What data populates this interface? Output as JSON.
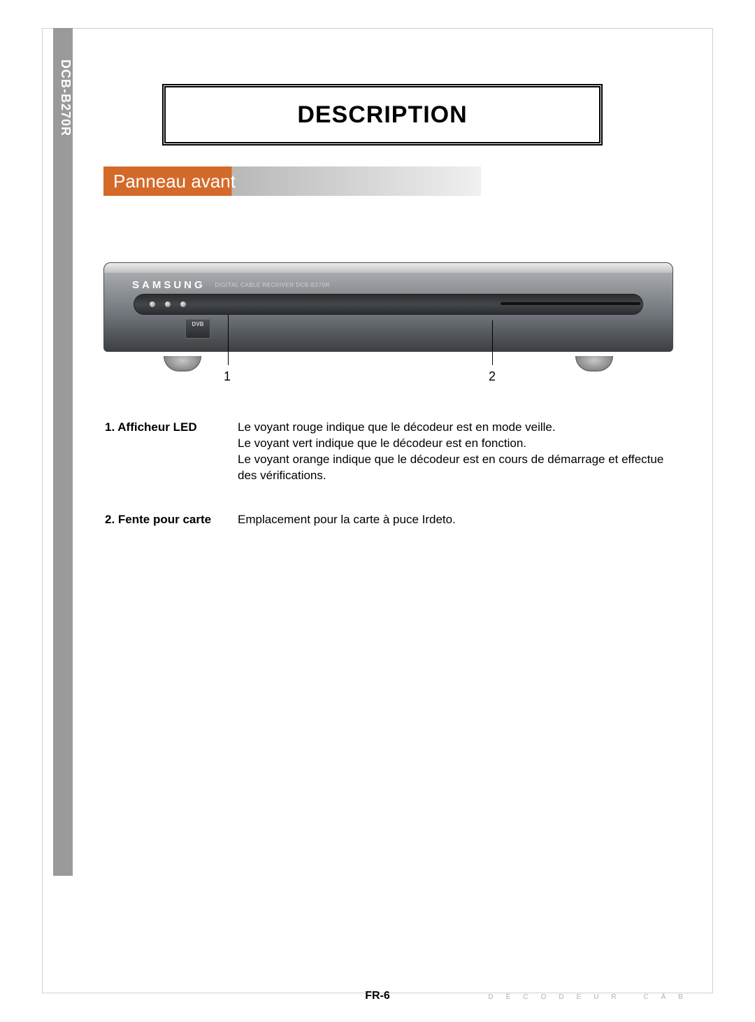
{
  "sideTab": {
    "label": "DCB-B270R"
  },
  "title": "DESCRIPTION",
  "subtitle": "Panneau avant",
  "device": {
    "brand": "SAMSUNG",
    "smallLabel": "DIGITAL CABLE RECEIVER DCB-B270R",
    "dvb": "DVB"
  },
  "callouts": {
    "one": "1",
    "two": "2"
  },
  "definitions": [
    {
      "term": "1. Afficheur LED",
      "desc": "Le voyant rouge indique que le décodeur est en mode veille.\nLe voyant vert indique que le décodeur est en fonction.\nLe voyant orange indique que le décodeur est en cours de démarrage et effectue des vérifications."
    },
    {
      "term": "2. Fente pour carte",
      "desc": "Emplacement pour la carte à puce Irdeto."
    }
  ],
  "footer": {
    "pageNum": "FR-6",
    "spaced": "DÉCODEUR CÂB"
  },
  "colors": {
    "accent": "#d46a2a",
    "sidebar": "#9a9a9a"
  }
}
